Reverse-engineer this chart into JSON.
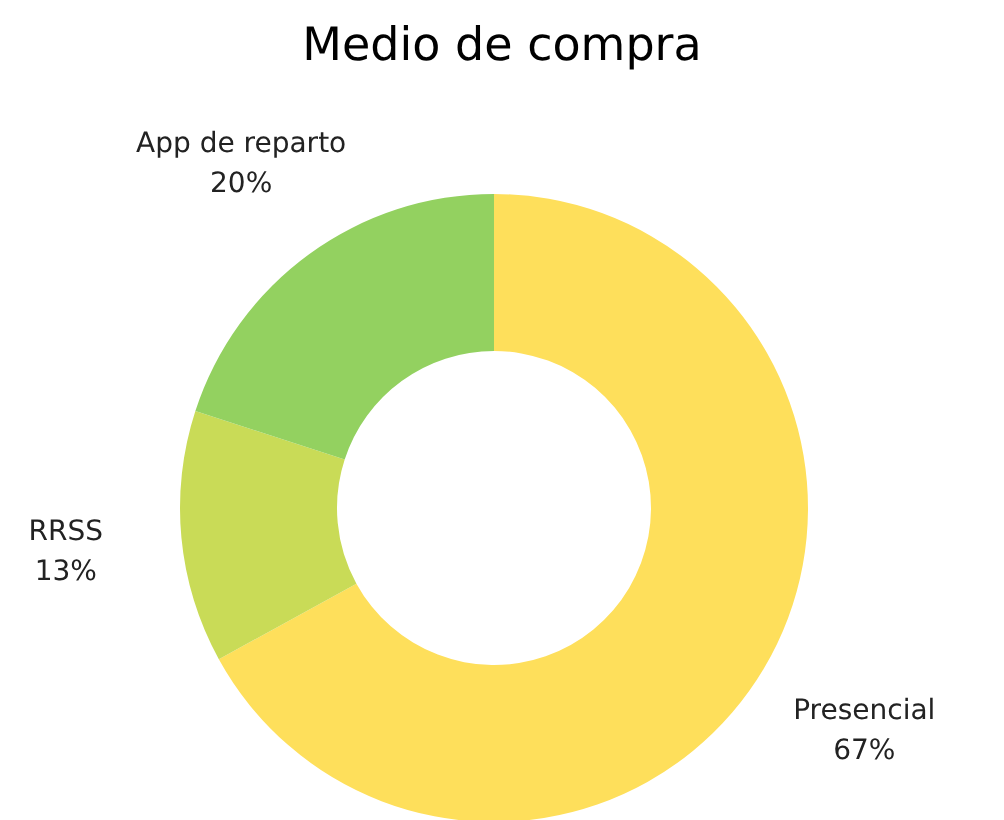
{
  "chart_data": {
    "type": "donut",
    "title": "Medio de compra",
    "categories": [
      "Presencial",
      "RRSS",
      "App de reparto"
    ],
    "values": [
      67,
      13,
      20
    ],
    "value_labels": [
      "67%",
      "13%",
      "20%"
    ],
    "colors": [
      "#fedf5b",
      "#c9db57",
      "#93d160"
    ]
  }
}
